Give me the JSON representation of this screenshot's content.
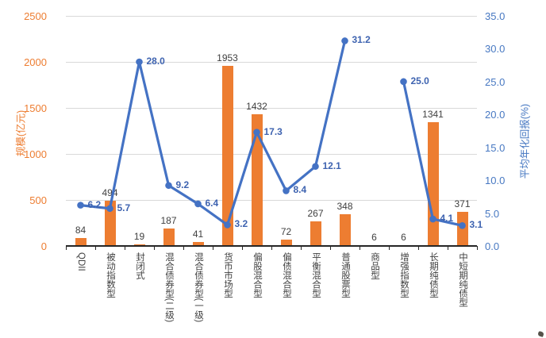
{
  "chart_data": {
    "type": "bar-line-combo",
    "title": "",
    "legend": "none",
    "grid": true,
    "categories": [
      "QDII",
      "被动指数型",
      "封闭式",
      "混合债券型(二级)",
      "混合债券型(一级)",
      "货币市场型",
      "偏股混合型",
      "偏债混合型",
      "平衡混合型",
      "普通股票型",
      "商品型",
      "增强指数型",
      "长期纯债型",
      "中短期纯债型"
    ],
    "series": [
      {
        "name": "规模",
        "type": "bar",
        "axis": "left",
        "color": "#ed7d31",
        "values": [
          84,
          494,
          19,
          187,
          41,
          1953,
          1432,
          72,
          267,
          348,
          6,
          6,
          1341,
          371
        ],
        "labels": [
          "84",
          "494",
          "19",
          "187",
          "41",
          "1953",
          "1432",
          "72",
          "267",
          "348",
          "6",
          "6",
          "1341",
          "371"
        ]
      },
      {
        "name": "平均年化回报",
        "type": "line",
        "axis": "right",
        "color": "#4472c4",
        "values": [
          6.2,
          5.7,
          28.0,
          9.2,
          6.4,
          3.2,
          17.3,
          8.4,
          12.1,
          31.2,
          null,
          25.0,
          4.1,
          3.1
        ],
        "labels": [
          "6.2",
          "5.7",
          "28.0",
          "9.2",
          "6.4",
          "3.2",
          "17.3",
          "8.4",
          "12.1",
          "31.2",
          null,
          "25.0",
          "4.1",
          "3.1"
        ]
      }
    ],
    "left_axis": {
      "title": "规模(亿元)",
      "min": 0,
      "max": 2500,
      "step": 500,
      "color": "#ed7d31",
      "tick_labels": [
        "0",
        "500",
        "1000",
        "1500",
        "2000",
        "2500"
      ]
    },
    "right_axis": {
      "title": "平均年化回报(%)",
      "min": 0,
      "max": 35,
      "step": 5,
      "color": "#4778c2",
      "tick_labels": [
        "0.0",
        "5.0",
        "10.0",
        "15.0",
        "20.0",
        "25.0",
        "30.0",
        "35.0"
      ]
    },
    "style": {
      "gridline_color": "#d9d9d9",
      "axis_line_color": "#262626",
      "bar_label_color": "#404040",
      "x_label_color": "#404040",
      "line_label_color": "#3e63b0",
      "background": "#ffffff"
    }
  }
}
